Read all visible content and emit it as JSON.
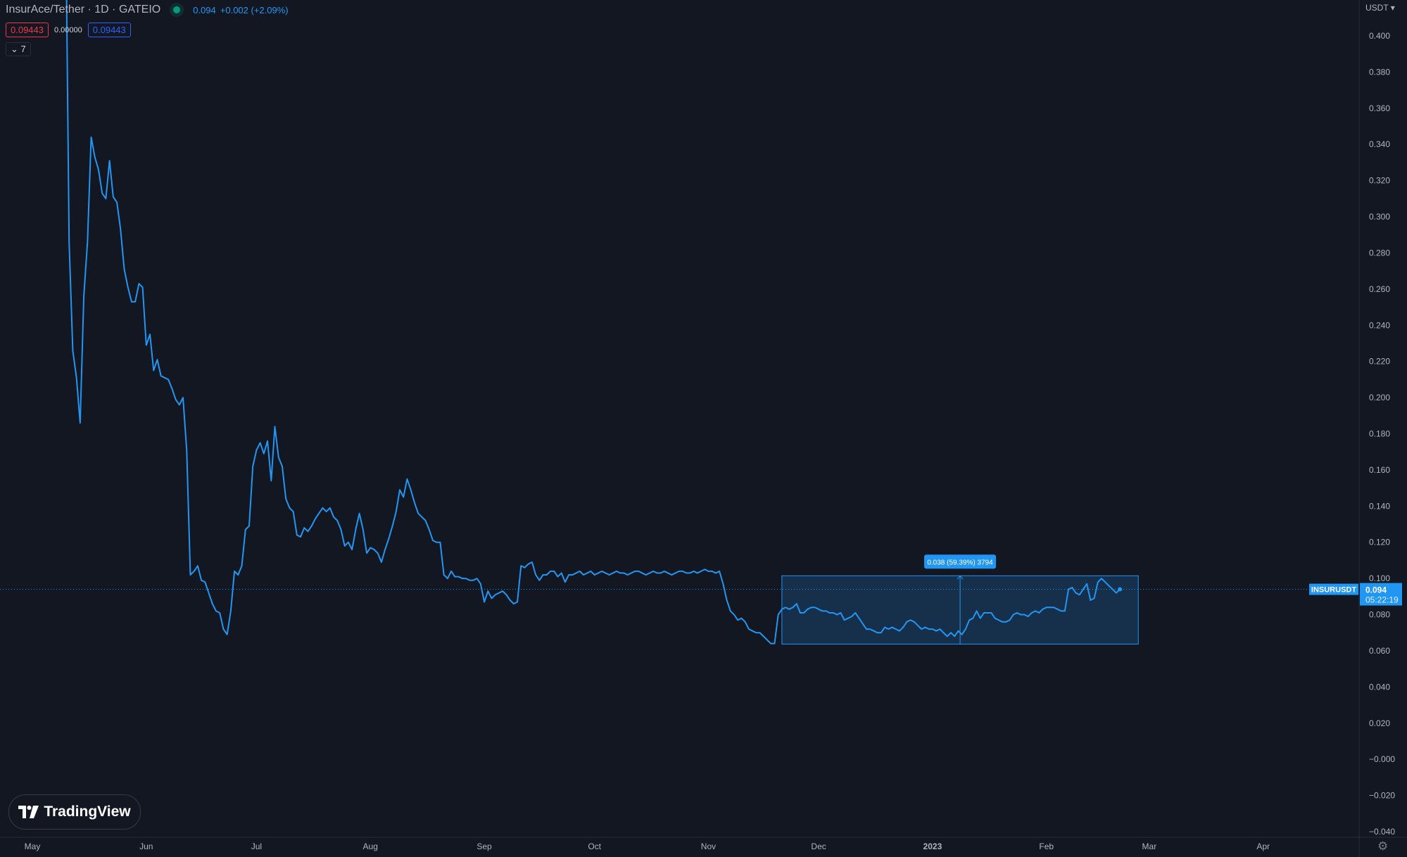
{
  "header": {
    "title": "InsurAce/Tether · 1D · GATEIO",
    "status_icon": "market-open-dot",
    "last_price": "0.094",
    "change": "+0.002 (+2.09%)",
    "bid": "0.09443",
    "spread": "0.00000",
    "ask": "0.09443",
    "collapse_count": "7"
  },
  "axis": {
    "currency": "USDT"
  },
  "logo": {
    "text": "TradingView"
  },
  "colors": {
    "background": "#131722",
    "line": "#2196f3",
    "bid": "#f23645",
    "ask": "#2962ff",
    "status": "#089981"
  },
  "chart_data": {
    "type": "line",
    "symbol": "INSURUSDT",
    "interval": "1D",
    "start_date": "2022-05-10",
    "ylim": [
      -0.04,
      0.4
    ],
    "y_ticks": [
      "0.400",
      "0.380",
      "0.360",
      "0.340",
      "0.320",
      "0.300",
      "0.280",
      "0.260",
      "0.240",
      "0.220",
      "0.200",
      "0.180",
      "0.160",
      "0.140",
      "0.120",
      "0.100",
      "0.080",
      "0.060",
      "0.040",
      "0.020",
      "−0.000",
      "−0.020",
      "−0.040"
    ],
    "x_ticks": [
      {
        "label": "May",
        "date": "2022-05-01"
      },
      {
        "label": "Jun",
        "date": "2022-06-01"
      },
      {
        "label": "Jul",
        "date": "2022-07-01"
      },
      {
        "label": "Aug",
        "date": "2022-08-01"
      },
      {
        "label": "Sep",
        "date": "2022-09-01"
      },
      {
        "label": "Oct",
        "date": "2022-10-01"
      },
      {
        "label": "Nov",
        "date": "2022-11-01"
      },
      {
        "label": "Dec",
        "date": "2022-12-01"
      },
      {
        "label": "2023",
        "date": "2023-01-01"
      },
      {
        "label": "Feb",
        "date": "2023-02-01"
      },
      {
        "label": "Mar",
        "date": "2023-03-01"
      },
      {
        "label": "Apr",
        "date": "2023-04-01"
      }
    ],
    "values": [
      0.48,
      0.286,
      0.226,
      0.211,
      0.186,
      0.256,
      0.286,
      0.344,
      0.333,
      0.326,
      0.313,
      0.31,
      0.331,
      0.311,
      0.308,
      0.293,
      0.271,
      0.261,
      0.253,
      0.253,
      0.263,
      0.261,
      0.229,
      0.235,
      0.215,
      0.221,
      0.212,
      0.211,
      0.21,
      0.205,
      0.199,
      0.196,
      0.2,
      0.171,
      0.102,
      0.104,
      0.107,
      0.099,
      0.098,
      0.092,
      0.086,
      0.082,
      0.081,
      0.072,
      0.069,
      0.082,
      0.104,
      0.102,
      0.107,
      0.127,
      0.129,
      0.162,
      0.171,
      0.175,
      0.169,
      0.176,
      0.154,
      0.184,
      0.167,
      0.162,
      0.144,
      0.139,
      0.137,
      0.124,
      0.123,
      0.128,
      0.126,
      0.129,
      0.133,
      0.136,
      0.139,
      0.137,
      0.139,
      0.134,
      0.132,
      0.127,
      0.118,
      0.12,
      0.116,
      0.127,
      0.136,
      0.127,
      0.114,
      0.117,
      0.116,
      0.114,
      0.109,
      0.116,
      0.122,
      0.129,
      0.137,
      0.149,
      0.145,
      0.155,
      0.149,
      0.142,
      0.136,
      0.134,
      0.132,
      0.127,
      0.121,
      0.12,
      0.12,
      0.102,
      0.1,
      0.104,
      0.101,
      0.101,
      0.1,
      0.1,
      0.099,
      0.099,
      0.1,
      0.097,
      0.087,
      0.093,
      0.089,
      0.091,
      0.092,
      0.093,
      0.091,
      0.088,
      0.086,
      0.087,
      0.107,
      0.106,
      0.108,
      0.109,
      0.102,
      0.099,
      0.102,
      0.102,
      0.104,
      0.104,
      0.101,
      0.103,
      0.098,
      0.102,
      0.102,
      0.103,
      0.104,
      0.102,
      0.103,
      0.104,
      0.102,
      0.103,
      0.104,
      0.103,
      0.102,
      0.103,
      0.104,
      0.103,
      0.103,
      0.102,
      0.103,
      0.104,
      0.104,
      0.103,
      0.102,
      0.103,
      0.104,
      0.103,
      0.103,
      0.104,
      0.103,
      0.102,
      0.103,
      0.104,
      0.104,
      0.103,
      0.103,
      0.104,
      0.103,
      0.104,
      0.105,
      0.104,
      0.104,
      0.103,
      0.104,
      0.097,
      0.088,
      0.082,
      0.08,
      0.077,
      0.078,
      0.076,
      0.072,
      0.071,
      0.07,
      0.07,
      0.068,
      0.066,
      0.064,
      0.064,
      0.08,
      0.083,
      0.084,
      0.083,
      0.084,
      0.086,
      0.081,
      0.081,
      0.083,
      0.084,
      0.084,
      0.083,
      0.082,
      0.082,
      0.081,
      0.081,
      0.08,
      0.081,
      0.077,
      0.078,
      0.079,
      0.081,
      0.078,
      0.075,
      0.072,
      0.072,
      0.071,
      0.07,
      0.07,
      0.073,
      0.072,
      0.073,
      0.072,
      0.071,
      0.073,
      0.076,
      0.077,
      0.076,
      0.074,
      0.072,
      0.073,
      0.072,
      0.072,
      0.071,
      0.072,
      0.07,
      0.068,
      0.07,
      0.068,
      0.071,
      0.069,
      0.072,
      0.077,
      0.078,
      0.082,
      0.078,
      0.081,
      0.081,
      0.081,
      0.078,
      0.077,
      0.076,
      0.076,
      0.077,
      0.08,
      0.081,
      0.08,
      0.08,
      0.079,
      0.081,
      0.082,
      0.081,
      0.083,
      0.084,
      0.084,
      0.084,
      0.083,
      0.082,
      0.082,
      0.094,
      0.095,
      0.092,
      0.091,
      0.094,
      0.097,
      0.088,
      0.089,
      0.098,
      0.1,
      0.098,
      0.096,
      0.094,
      0.092,
      0.094
    ],
    "current_price": "0.094",
    "countdown": "05:22:19",
    "measure": {
      "from": "2022-11-21",
      "to": "2023-02-26",
      "low": 0.0637,
      "high": 0.1015,
      "label": "0.038 (59.39%) 3794"
    }
  }
}
